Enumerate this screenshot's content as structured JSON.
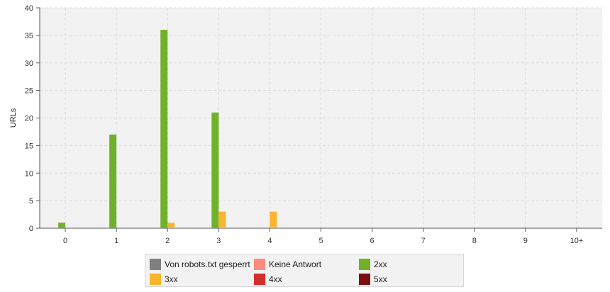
{
  "chart_data": {
    "type": "bar",
    "title": "",
    "xlabel": "",
    "ylabel": "URLs",
    "ylim": [
      0,
      40
    ],
    "yticks": [
      0,
      5,
      10,
      15,
      20,
      25,
      30,
      35,
      40
    ],
    "categories": [
      "0",
      "1",
      "2",
      "3",
      "4",
      "5",
      "6",
      "7",
      "8",
      "9",
      "10+"
    ],
    "grid": true,
    "legend_position": "bottom",
    "series": [
      {
        "name": "Von robots.txt gesperrt",
        "color": "#808080",
        "values": [
          0,
          0,
          0,
          0,
          0,
          0,
          0,
          0,
          0,
          0,
          0
        ]
      },
      {
        "name": "Keine Antwort",
        "color": "#ff8a80",
        "values": [
          0,
          0,
          0,
          0,
          0,
          0,
          0,
          0,
          0,
          0,
          0
        ]
      },
      {
        "name": "2xx",
        "color": "#6fb229",
        "values": [
          1,
          17,
          36,
          21,
          0,
          0,
          0,
          0,
          0,
          0,
          0
        ]
      },
      {
        "name": "3xx",
        "color": "#f9b52e",
        "values": [
          0,
          0,
          1,
          3,
          3,
          0,
          0,
          0,
          0,
          0,
          0
        ]
      },
      {
        "name": "4xx",
        "color": "#d32f2f",
        "values": [
          0,
          0,
          0,
          0,
          0,
          0,
          0,
          0,
          0,
          0,
          0
        ]
      },
      {
        "name": "5xx",
        "color": "#7b1010",
        "values": [
          0,
          0,
          0,
          0,
          0,
          0,
          0,
          0,
          0,
          0,
          0
        ]
      }
    ]
  }
}
